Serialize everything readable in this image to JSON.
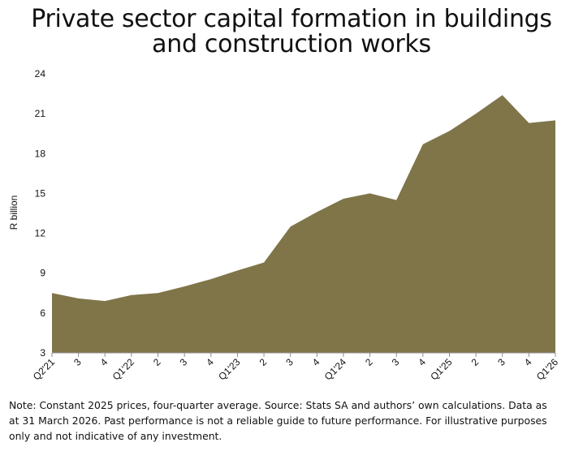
{
  "chart_data": {
    "type": "area",
    "title_lines": [
      "Private sector capital formation in buildings",
      "and construction works"
    ],
    "ylabel": "R billion",
    "xlabel": "",
    "ylim": [
      3,
      24
    ],
    "yticks": [
      3,
      6,
      9,
      12,
      15,
      18,
      21,
      24
    ],
    "grid": false,
    "legend": "none",
    "color": "#7f7549",
    "categories": [
      "Q2'21",
      "3",
      "4",
      "Q1'22",
      "2",
      "3",
      "4",
      "Q1'23",
      "2",
      "3",
      "4",
      "Q1'24",
      "2",
      "3",
      "4",
      "Q1'25",
      "2",
      "3",
      "4",
      "Q1'26"
    ],
    "series": [
      {
        "values": [
          7.5,
          7.1,
          6.9,
          7.35,
          7.5,
          8.0,
          8.55,
          9.2,
          9.8,
          12.5,
          13.6,
          14.6,
          15.0,
          14.5,
          18.7,
          19.7,
          21.0,
          22.4,
          20.3,
          20.5
        ]
      }
    ],
    "note_lines": [
      "Note: Constant 2025 prices, four-quarter average. Source: Stats SA and authors’ own calculations. Data as",
      "at 31 March 2026. Past performance is not a reliable guide to future performance. For illustrative purposes",
      "only and not indicative of any investment."
    ]
  }
}
